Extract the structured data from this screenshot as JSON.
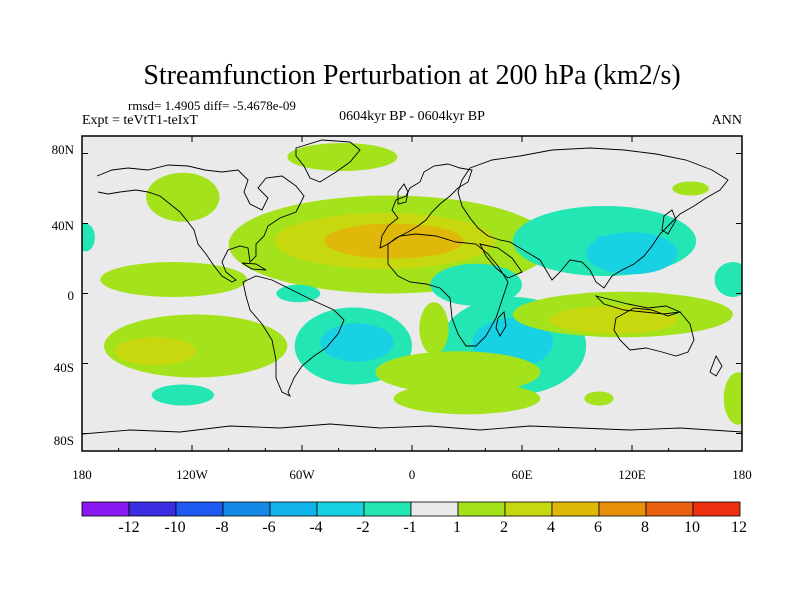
{
  "chart_data": {
    "type": "contour_map",
    "title": "Streamfunction Perturbation at 200 hPa (km2/s)",
    "stats_line": "rmsd= 1.4905 diff= -5.4678e-09",
    "left_label": "Expt = teVtT1-teIxT",
    "center_label": "0604kyr BP - 0604kyr BP",
    "right_label": "ANN",
    "lat_ticks": [
      "80N",
      "40N",
      "0",
      "40S",
      "80S"
    ],
    "lon_ticks": [
      "180",
      "120W",
      "60W",
      "0",
      "60E",
      "120E",
      "180"
    ],
    "lat_range": [
      -90,
      90
    ],
    "lon_range": [
      -180,
      180
    ],
    "colorbar": {
      "levels": [
        "-12",
        "-10",
        "-8",
        "-6",
        "-4",
        "-2",
        "-1",
        "1",
        "2",
        "4",
        "6",
        "8",
        "10",
        "12"
      ],
      "colors": [
        "#8A18F0",
        "#3B2EE0",
        "#1E5AF0",
        "#148AE6",
        "#10B4E8",
        "#18D2E4",
        "#24E6B4",
        "#EAEAEA",
        "#A4E21C",
        "#C8D80E",
        "#E0B80A",
        "#E8900A",
        "#EA6010",
        "#EE3010"
      ]
    },
    "regions": [
      {
        "lon": -178,
        "lat": 32,
        "rlon": 5,
        "rlat": 8,
        "value": -1.5
      },
      {
        "lon": -125,
        "lat": 55,
        "rlon": 20,
        "rlat": 14,
        "value": 1.5
      },
      {
        "lon": -130,
        "lat": 8,
        "rlon": 40,
        "rlat": 10,
        "value": 1.5
      },
      {
        "lon": -118,
        "lat": -30,
        "rlon": 50,
        "rlat": 18,
        "value": 1.5
      },
      {
        "lon": -140,
        "lat": -33,
        "rlon": 22,
        "rlat": 8,
        "value": 2.5
      },
      {
        "lon": -125,
        "lat": -58,
        "rlon": 17,
        "rlat": 6,
        "value": -1.5
      },
      {
        "lon": -38,
        "lat": 78,
        "rlon": 30,
        "rlat": 8,
        "value": 1.5
      },
      {
        "lon": -12,
        "lat": 28,
        "rlon": 88,
        "rlat": 28,
        "value": 1.5
      },
      {
        "lon": -15,
        "lat": 30,
        "rlon": 60,
        "rlat": 16,
        "value": 3
      },
      {
        "lon": -10,
        "lat": 30,
        "rlon": 38,
        "rlat": 10,
        "value": 4.5
      },
      {
        "lon": -62,
        "lat": 0,
        "rlon": 12,
        "rlat": 5,
        "value": -1.5
      },
      {
        "lon": -32,
        "lat": -30,
        "rlon": 32,
        "rlat": 22,
        "value": -1.5
      },
      {
        "lon": -30,
        "lat": -28,
        "rlon": 20,
        "rlat": 11,
        "value": -2.5
      },
      {
        "lon": 35,
        "lat": 5,
        "rlon": 25,
        "rlat": 12,
        "value": -1.5
      },
      {
        "lon": 55,
        "lat": -30,
        "rlon": 40,
        "rlat": 28,
        "value": -1.5
      },
      {
        "lon": 55,
        "lat": -28,
        "rlon": 22,
        "rlat": 14,
        "value": -2.5
      },
      {
        "lon": 25,
        "lat": -45,
        "rlon": 45,
        "rlat": 12,
        "value": 1.5
      },
      {
        "lon": 30,
        "lat": -60,
        "rlon": 40,
        "rlat": 9,
        "value": 1.5
      },
      {
        "lon": 12,
        "lat": -20,
        "rlon": 8,
        "rlat": 15,
        "value": 1.5
      },
      {
        "lon": 105,
        "lat": 30,
        "rlon": 50,
        "rlat": 20,
        "value": -1.5
      },
      {
        "lon": 120,
        "lat": 23,
        "rlon": 25,
        "rlat": 12,
        "value": -2.5
      },
      {
        "lon": 105,
        "lat": 30,
        "rlon": 5,
        "rlat": 3,
        "value": -3
      },
      {
        "lon": 115,
        "lat": -12,
        "rlon": 60,
        "rlat": 13,
        "value": 1.5
      },
      {
        "lon": 110,
        "lat": -15,
        "rlon": 35,
        "rlat": 8,
        "value": 2.5
      },
      {
        "lon": 102,
        "lat": -60,
        "rlon": 8,
        "rlat": 4,
        "value": 1.5
      },
      {
        "lon": 152,
        "lat": 60,
        "rlon": 10,
        "rlat": 4,
        "value": 1.5
      },
      {
        "lon": 175,
        "lat": 8,
        "rlon": 10,
        "rlat": 10,
        "value": -1.5
      },
      {
        "lon": 178,
        "lat": -60,
        "rlon": 8,
        "rlat": 15,
        "value": 1.5
      }
    ]
  }
}
